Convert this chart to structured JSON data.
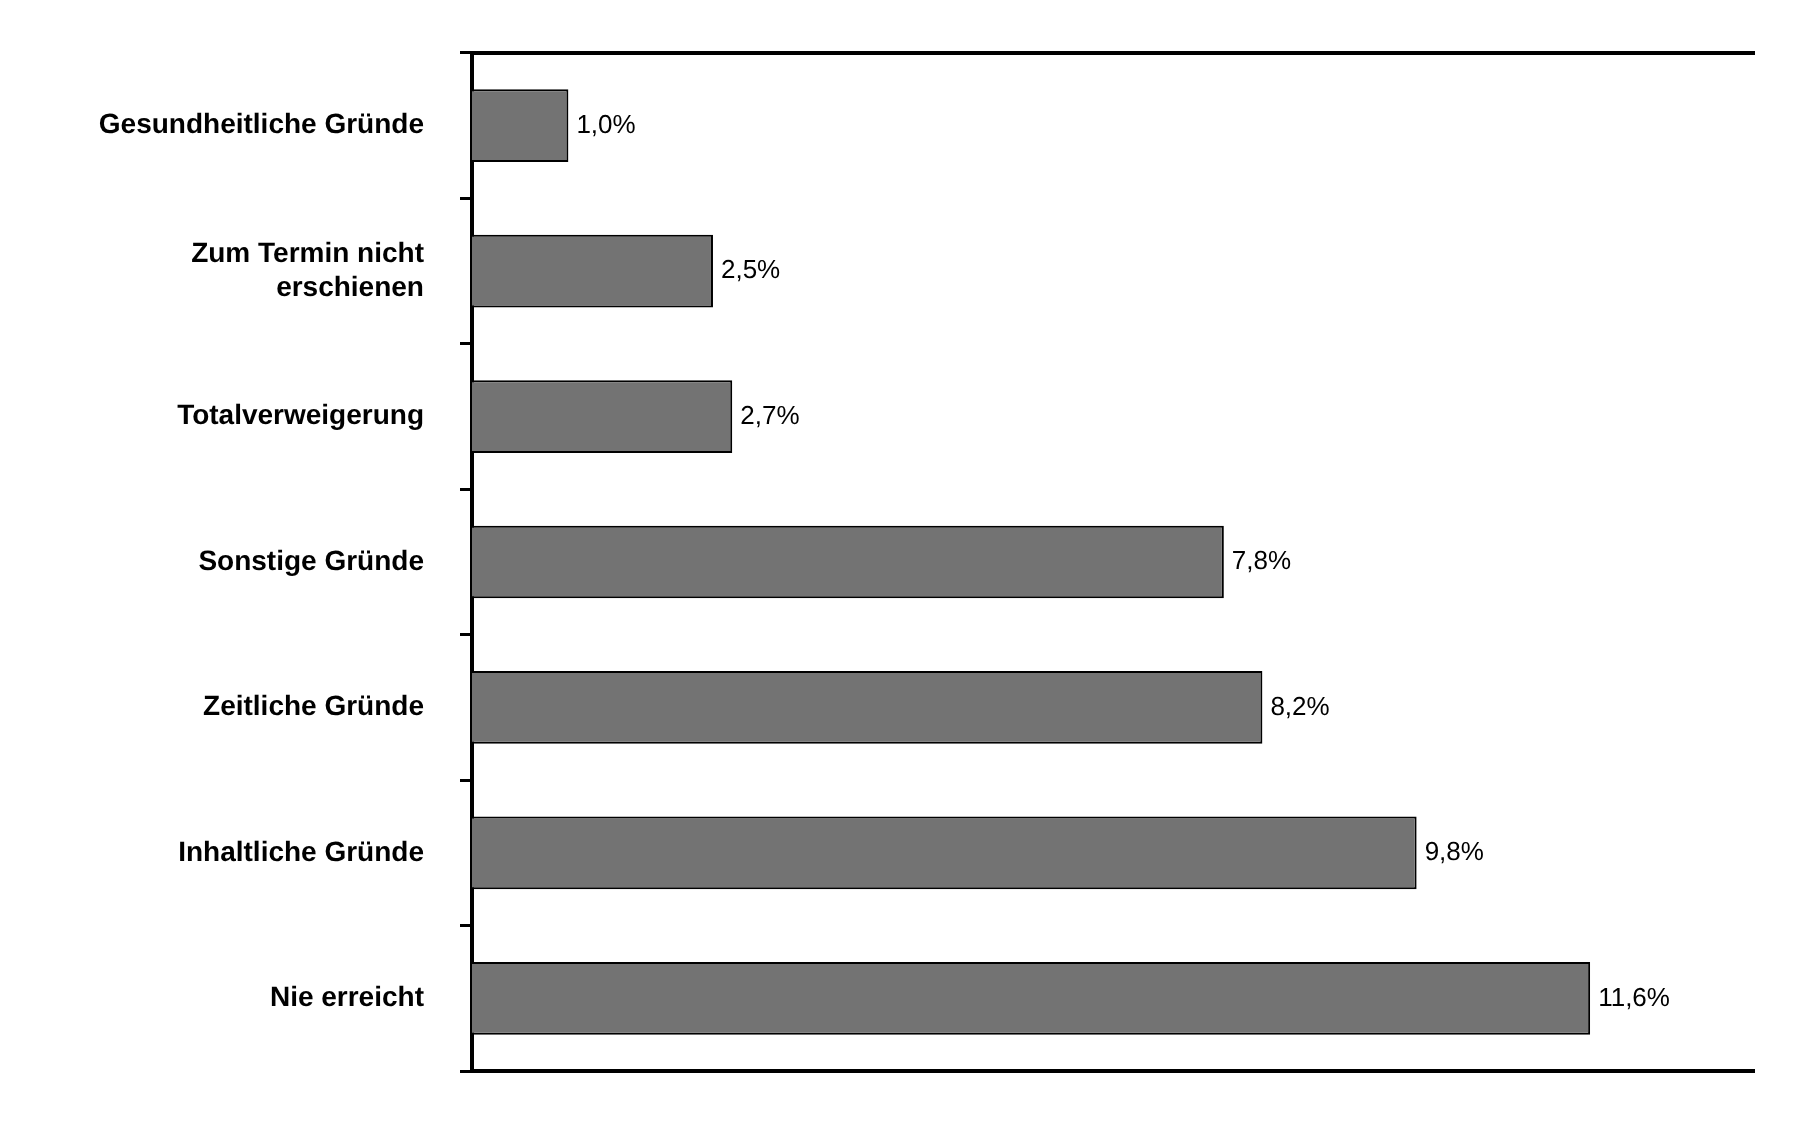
{
  "chart_data": {
    "type": "bar",
    "orientation": "horizontal",
    "categories": [
      "Gesundheitliche Gründe",
      "Zum Termin nicht erschienen",
      "Totalverweigerung",
      "Sonstige Gründe",
      "Zeitliche Gründe",
      "Inhaltliche Gründe",
      "Nie erreicht"
    ],
    "values": [
      1.0,
      2.5,
      2.7,
      7.8,
      8.2,
      9.8,
      11.6
    ],
    "value_labels": [
      "1,0%",
      "2,5%",
      "2,7%",
      "7,8%",
      "8,2%",
      "9,8%",
      "11,6%"
    ],
    "color": "#737373",
    "xlim": [
      0,
      13.3
    ],
    "tick_labels": "y",
    "grid": false
  }
}
